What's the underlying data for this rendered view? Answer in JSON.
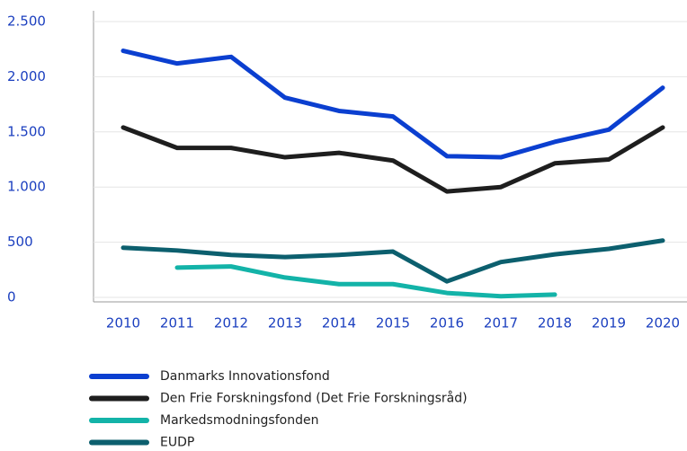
{
  "chart_data": {
    "type": "line",
    "categories": [
      "2010",
      "2011",
      "2012",
      "2013",
      "2014",
      "2015",
      "2016",
      "2017",
      "2018",
      "2019",
      "2020"
    ],
    "series": [
      {
        "name": "Danmarks Innovationsfond",
        "color": "#0b3fd0",
        "values": [
          2235,
          2120,
          2180,
          1810,
          1690,
          1640,
          1280,
          1270,
          1410,
          1520,
          1900
        ]
      },
      {
        "name": "Den Frie Forskningsfond (Det Frie Forskningsråd)",
        "color": "#1e1e1e",
        "values": [
          1540,
          1355,
          1355,
          1270,
          1310,
          1240,
          960,
          1000,
          1215,
          1250,
          1540
        ]
      },
      {
        "name": "Markedsmodningsfonden",
        "color": "#13b3a8",
        "values": [
          null,
          270,
          280,
          180,
          120,
          120,
          40,
          10,
          25,
          null,
          null
        ]
      },
      {
        "name": "EUDP",
        "color": "#0c5f6e",
        "values": [
          450,
          425,
          385,
          365,
          385,
          415,
          145,
          320,
          390,
          440,
          515
        ]
      }
    ],
    "ylim": [
      0,
      2500
    ],
    "yticks": [
      0,
      500,
      {
        "value": 1000,
        "label": "1.000"
      },
      {
        "value": 1500,
        "label": "1.500"
      },
      {
        "value": 2000,
        "label": "2.000"
      },
      {
        "value": 2500,
        "label": "2.500"
      }
    ],
    "grid": true,
    "legend": "bottom"
  }
}
